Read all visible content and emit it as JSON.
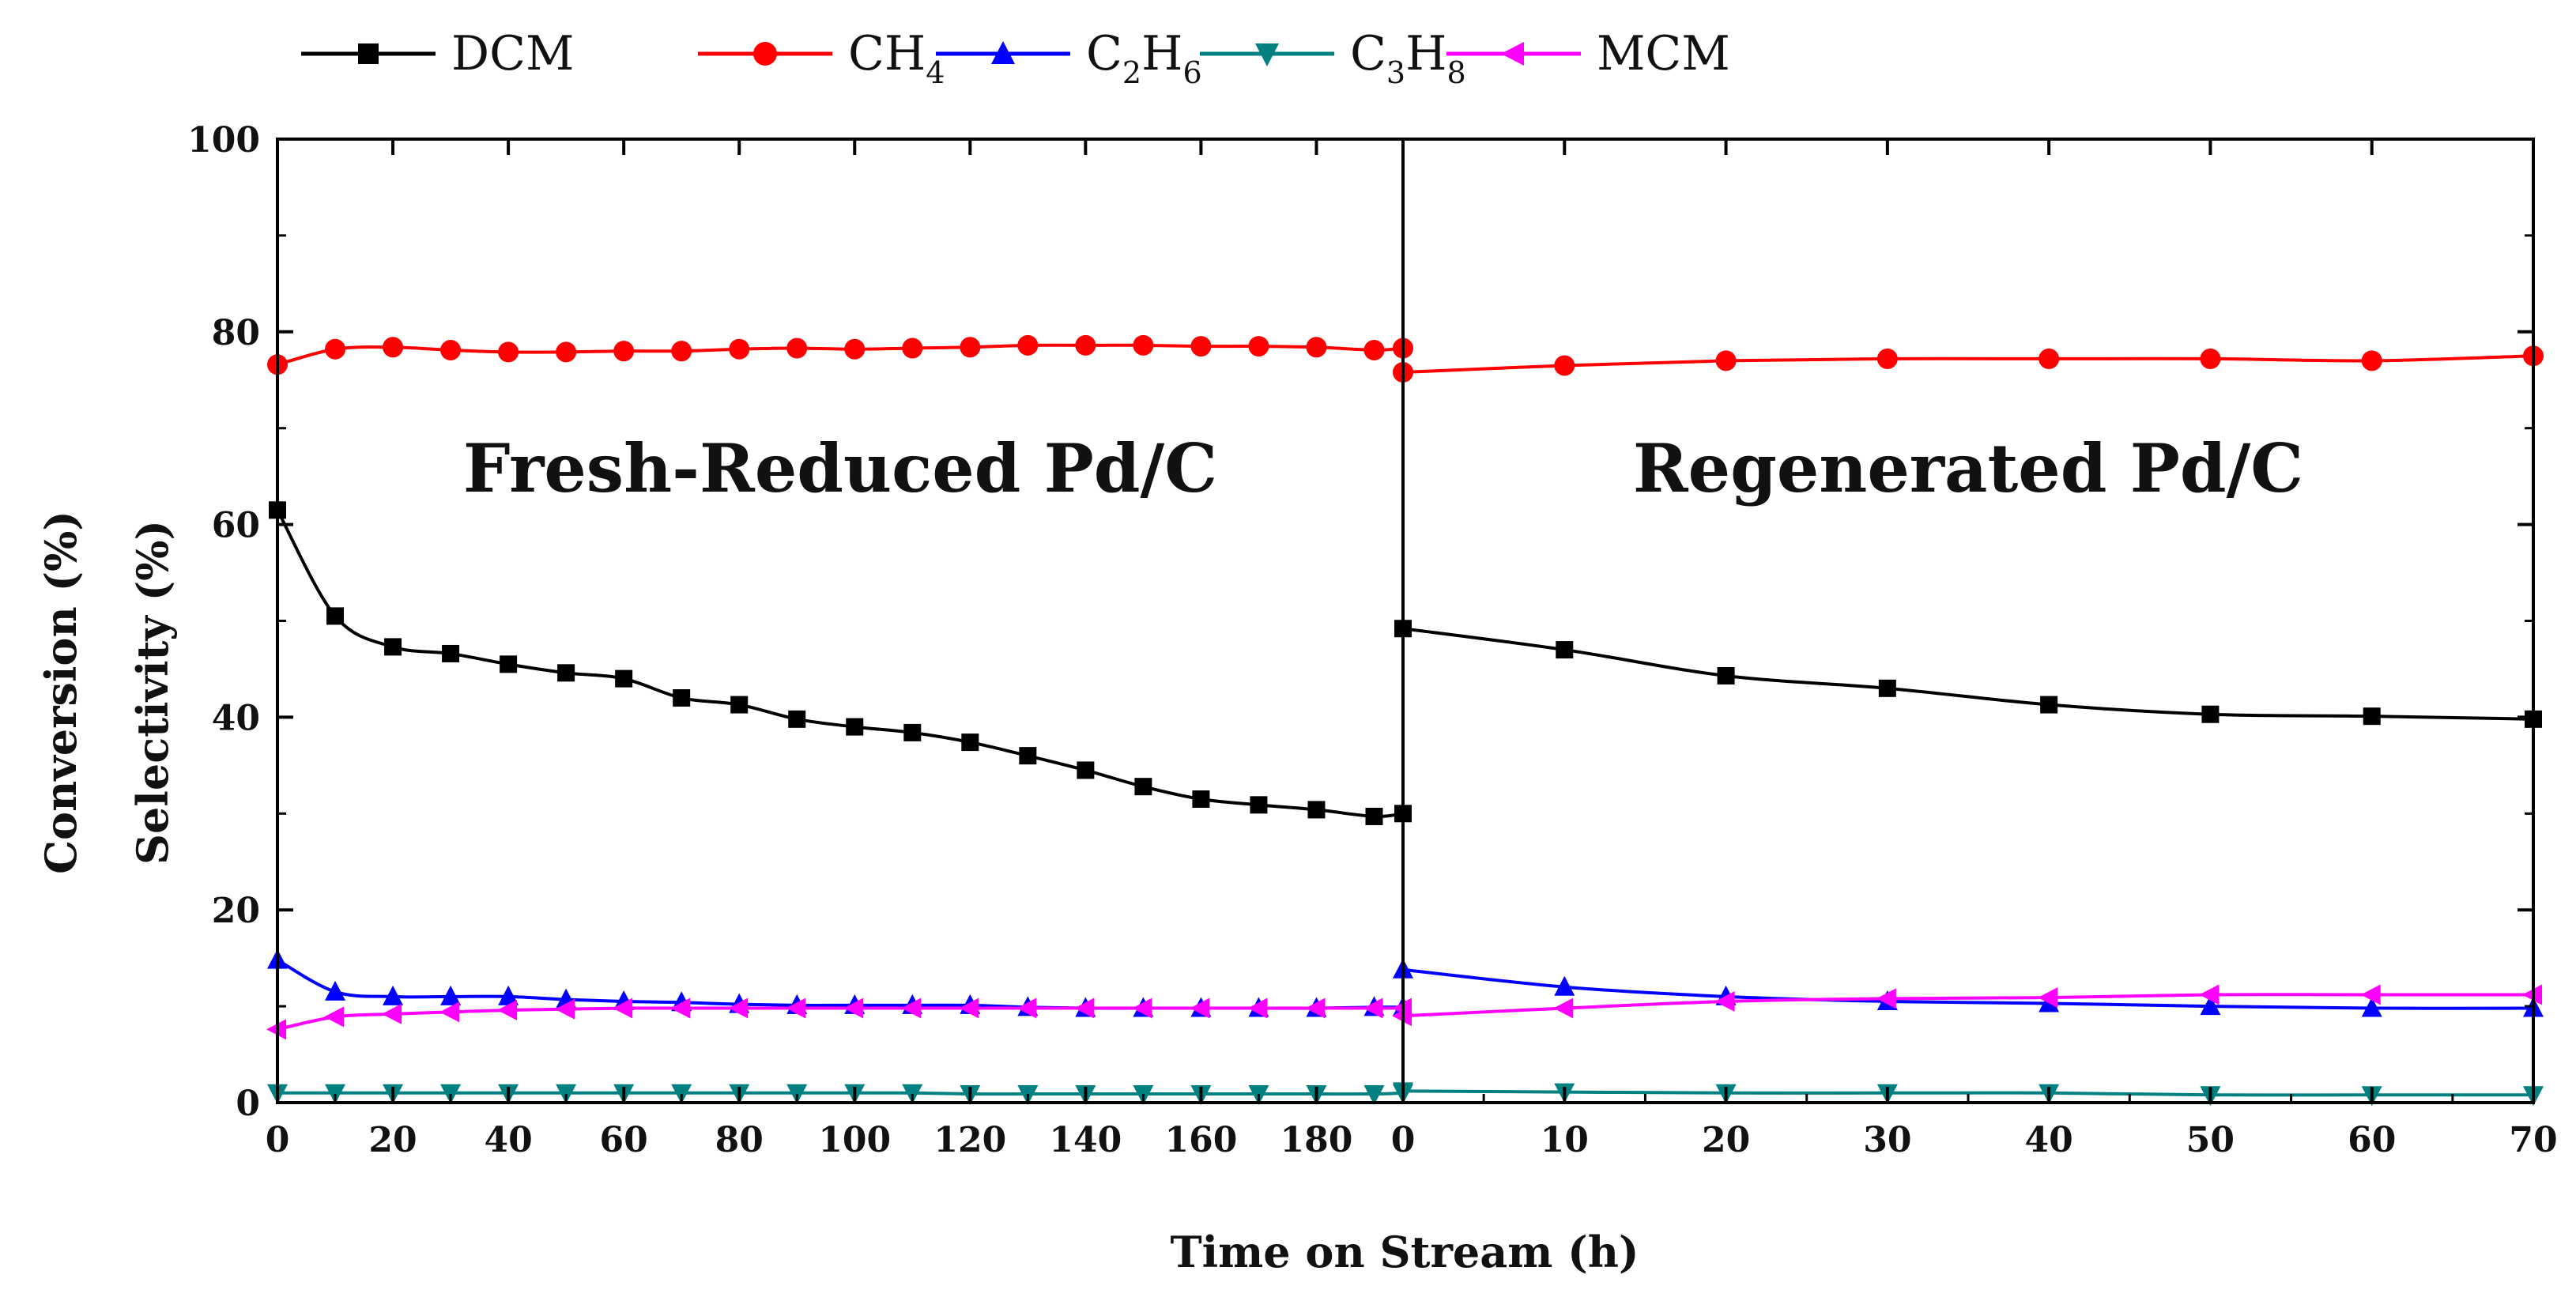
{
  "chart_data": {
    "type": "line",
    "xlabel": "Time on Stream (h)",
    "ylabel_lines": [
      "Conversion (%)",
      "Selectivity (%)"
    ],
    "ylim": [
      0,
      100
    ],
    "y_ticks": [
      0,
      20,
      40,
      60,
      80,
      100
    ],
    "grid": false,
    "legend_position": "top-left, above plot",
    "legend": [
      {
        "name": "DCM",
        "base": "DCM",
        "sub": [],
        "color": "#000000",
        "marker": "square"
      },
      {
        "name": "CH4",
        "base": "CH",
        "sub": [
          "4"
        ],
        "color": "#ff0000",
        "marker": "circle"
      },
      {
        "name": "C2H6",
        "base": "C",
        "sub": [
          "2",
          "H",
          "6"
        ],
        "color": "#0000ff",
        "marker": "triangle-up"
      },
      {
        "name": "C3H8",
        "base": "C",
        "sub": [
          "3",
          "H",
          "8"
        ],
        "color": "#008080",
        "marker": "triangle-down"
      },
      {
        "name": "MCM",
        "base": "MCM",
        "sub": [],
        "color": "#ff00ff",
        "marker": "triangle-left"
      }
    ],
    "panels": [
      {
        "title": "Fresh-Reduced Pd/C",
        "xlim": [
          0,
          195
        ],
        "x_ticks": [
          0,
          20,
          40,
          60,
          80,
          100,
          120,
          140,
          160,
          180
        ],
        "x": [
          0,
          10,
          20,
          30,
          40,
          50,
          60,
          70,
          80,
          90,
          100,
          110,
          120,
          130,
          140,
          150,
          160,
          170,
          180,
          190,
          195
        ],
        "series": [
          {
            "name": "DCM",
            "values": [
              61.5,
              50.5,
              47.3,
              46.6,
              45.5,
              44.6,
              44.0,
              42.0,
              41.3,
              39.8,
              39.0,
              38.4,
              37.4,
              36.0,
              34.5,
              32.8,
              31.5,
              30.9,
              30.4,
              29.7,
              30.0
            ]
          },
          {
            "name": "CH4",
            "values": [
              76.6,
              78.2,
              78.4,
              78.1,
              77.9,
              77.9,
              78.0,
              78.0,
              78.2,
              78.3,
              78.2,
              78.3,
              78.4,
              78.6,
              78.6,
              78.6,
              78.5,
              78.5,
              78.4,
              78.1,
              78.3
            ]
          },
          {
            "name": "C2H6",
            "values": [
              14.8,
              11.5,
              11.0,
              11.0,
              11.0,
              10.7,
              10.5,
              10.4,
              10.2,
              10.1,
              10.1,
              10.1,
              10.1,
              9.9,
              9.8,
              9.8,
              9.8,
              9.8,
              9.8,
              9.9,
              9.9
            ]
          },
          {
            "name": "C3H8",
            "values": [
              1.0,
              1.0,
              1.0,
              1.0,
              1.0,
              1.0,
              1.0,
              1.0,
              1.0,
              1.0,
              1.0,
              1.0,
              0.9,
              0.9,
              0.9,
              0.9,
              0.9,
              0.9,
              0.9,
              0.9,
              1.0
            ]
          },
          {
            "name": "MCM",
            "values": [
              7.6,
              8.9,
              9.2,
              9.4,
              9.6,
              9.7,
              9.8,
              9.8,
              9.8,
              9.8,
              9.8,
              9.8,
              9.8,
              9.8,
              9.8,
              9.8,
              9.8,
              9.8,
              9.8,
              9.8,
              9.8
            ]
          }
        ]
      },
      {
        "title": "Regenerated Pd/C",
        "xlim": [
          0,
          70
        ],
        "x_ticks": [
          0,
          10,
          20,
          30,
          40,
          50,
          60,
          70
        ],
        "x": [
          0,
          10,
          20,
          30,
          40,
          50,
          60,
          70
        ],
        "series": [
          {
            "name": "DCM",
            "values": [
              49.2,
              47.0,
              44.3,
              43.0,
              41.3,
              40.3,
              40.1,
              39.8
            ]
          },
          {
            "name": "CH4",
            "values": [
              75.8,
              76.5,
              77.0,
              77.2,
              77.2,
              77.2,
              77.0,
              77.5
            ]
          },
          {
            "name": "C2H6",
            "values": [
              13.8,
              12.0,
              11.0,
              10.5,
              10.3,
              10.0,
              9.8,
              9.8
            ]
          },
          {
            "name": "C3H8",
            "values": [
              1.2,
              1.1,
              1.0,
              1.0,
              1.0,
              0.8,
              0.8,
              0.8
            ]
          },
          {
            "name": "MCM",
            "values": [
              9.0,
              9.8,
              10.5,
              10.8,
              10.9,
              11.2,
              11.2,
              11.2
            ]
          }
        ]
      }
    ]
  }
}
